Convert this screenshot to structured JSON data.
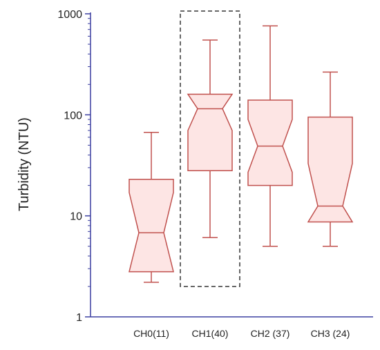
{
  "chart_data": {
    "type": "box",
    "ylabel": "Turbidity (NTU)",
    "yscale": "log",
    "ylim": [
      1,
      1000
    ],
    "y_ticks": [
      1,
      10,
      100,
      1000
    ],
    "y_tick_labels": [
      "1",
      "10",
      "100",
      "1000"
    ],
    "categories": [
      "CH0(11)",
      "CH1(40)",
      "CH2 (37)",
      "CH3 (24)"
    ],
    "boxes": [
      {
        "category": "CH0(11)",
        "whisker_low": 2.2,
        "q1": 2.8,
        "median": 6.8,
        "q3": 23,
        "whisker_high": 67,
        "notch_low": 2.8,
        "notch_high": 17
      },
      {
        "category": "CH1(40)",
        "whisker_low": 6.1,
        "q1": 28,
        "median": 115,
        "q3": 160,
        "whisker_high": 550,
        "notch_low": 70,
        "notch_high": 160
      },
      {
        "category": "CH2 (37)",
        "whisker_low": 5,
        "q1": 20,
        "median": 49,
        "q3": 140,
        "whisker_high": 760,
        "notch_low": 27,
        "notch_high": 90
      },
      {
        "category": "CH3 (24)",
        "whisker_low": 5,
        "q1": 8.7,
        "median": 12.5,
        "q3": 95,
        "whisker_high": 265,
        "notch_low": 8.7,
        "notch_high": 33
      }
    ],
    "highlight": {
      "category": "CH1(40)",
      "y_low": 2,
      "y_high": 1000,
      "style": "dashed-rectangle"
    },
    "grid": false,
    "colors": {
      "box_stroke": "#c0504d",
      "box_fill": "#fde5e4",
      "axis": "#3b3fa0",
      "highlight": "#333333"
    }
  }
}
